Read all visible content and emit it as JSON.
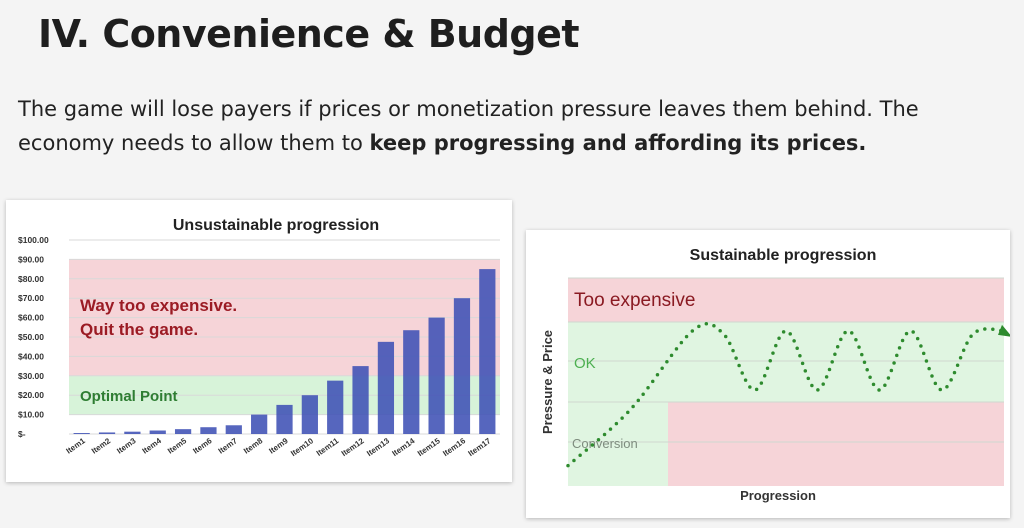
{
  "slide": {
    "title": "IV. Convenience & Budget",
    "body_intro": "The game will lose payers if prices or monetization pressure leaves them behind. The economy needs to allow them to ",
    "body_bold": "keep progressing and affording its prices."
  },
  "chart_data": [
    {
      "type": "bar",
      "title": "Unsustainable progression",
      "categories": [
        "Item1",
        "Item2",
        "Item3",
        "Item4",
        "Item5",
        "Item6",
        "Item7",
        "Item8",
        "Item9",
        "Item10",
        "Item11",
        "Item12",
        "Item13",
        "Item14",
        "Item15",
        "Item16",
        "Item17"
      ],
      "values": [
        0.5,
        0.8,
        1.2,
        1.8,
        2.5,
        3.5,
        4.5,
        10,
        15,
        20,
        27.5,
        35,
        47.5,
        53.5,
        60,
        70,
        85
      ],
      "ylim": [
        0,
        100
      ],
      "yticks": [
        "$-",
        "$10.00",
        "$20.00",
        "$30.00",
        "$40.00",
        "$50.00",
        "$60.00",
        "$70.00",
        "$80.00",
        "$90.00",
        "$100.00"
      ],
      "bands": [
        {
          "label": "",
          "from": 30,
          "to": 90,
          "color": "#f6d4d8"
        },
        {
          "label": "Optimal Point",
          "from": 10,
          "to": 30,
          "color": "#d7f3d9"
        }
      ],
      "annotation_lines": [
        "Way too expensive.",
        "Quit the game."
      ],
      "bar_color": "#3f51b5",
      "grid": true
    },
    {
      "type": "line",
      "title": "Sustainable progression",
      "xlabel": "Progression",
      "ylabel": "Pressure & Price",
      "region_labels": {
        "top": "Too expensive",
        "middle": "OK",
        "bottom": "Conversion"
      },
      "line_style": "dotted",
      "line_color": "#2e8b2e",
      "x": [
        0,
        2,
        4,
        5,
        6,
        7,
        8,
        9,
        10,
        11,
        12,
        13,
        14
      ],
      "y": [
        0.5,
        2.2,
        4.6,
        4.5,
        2.8,
        4.6,
        2.8,
        4.6,
        2.8,
        4.6,
        2.8,
        4.5,
        4.6
      ],
      "ylim": [
        0,
        7
      ],
      "colors": {
        "expensive": "#f6d4d8",
        "ok": "#e0f5e1"
      }
    }
  ]
}
